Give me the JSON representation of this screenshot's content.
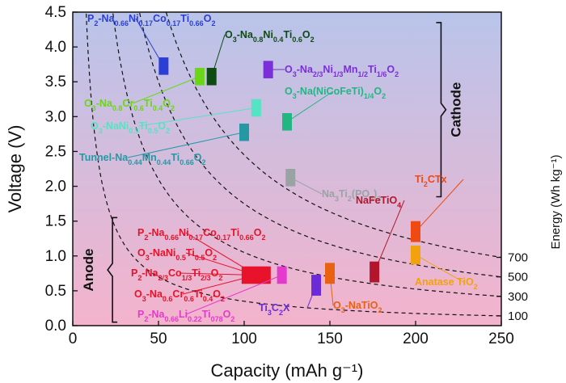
{
  "chart_data": {
    "type": "scatter",
    "title": "",
    "xlabel": "Capacity (mAh g⁻¹)",
    "ylabel": "Voltage (V)",
    "y2label": "Energy (Wh kg⁻¹)",
    "xlim": [
      0,
      250
    ],
    "ylim": [
      0,
      4.5
    ],
    "xticks": [
      0,
      50,
      100,
      150,
      200,
      250
    ],
    "yticks": [
      0.0,
      0.5,
      1.0,
      1.5,
      2.0,
      2.5,
      3.0,
      3.5,
      4.0,
      4.5
    ],
    "grid": false,
    "background": {
      "cathode_color": "#b9c4ea",
      "anode_color": "#f4b3cc"
    },
    "iso_energy_curves": [
      {
        "energy": 100,
        "label": "100"
      },
      {
        "energy": 300,
        "label": "300"
      },
      {
        "energy": 500,
        "label": "500"
      },
      {
        "energy": 700,
        "label": "700"
      }
    ],
    "groups": [
      {
        "name": "Cathode",
        "range": [
          1.85,
          4.35
        ]
      },
      {
        "name": "Anode",
        "range": [
          0.05,
          1.55
        ]
      }
    ],
    "materials": [
      {
        "label": "P2-Na0.66Ni0.17Co0.17Ti0.66O2",
        "group": "cathode",
        "capacity": 53,
        "voltage_range": [
          3.6,
          3.85
        ],
        "color": "#2b3fd6"
      },
      {
        "label": "O3-Na0.8Ni0.4Ti0.6O2",
        "group": "cathode",
        "capacity": 81,
        "voltage_range": [
          3.45,
          3.7
        ],
        "color": "#0f4a12"
      },
      {
        "label": "O3-Na0.8Cr0.6Ti0.4O2",
        "group": "cathode",
        "capacity": 74,
        "voltage_range": [
          3.45,
          3.7
        ],
        "color": "#6ad617"
      },
      {
        "label": "O3-Na2/3Ni1/3Mn1/2Ti1/6O2",
        "group": "cathode",
        "capacity": 114,
        "voltage_range": [
          3.55,
          3.8
        ],
        "color": "#7a2fd9"
      },
      {
        "label": "O3-Na(NiCoFeTi)1/4O2",
        "group": "cathode",
        "capacity": 125,
        "voltage_range": [
          2.8,
          3.05
        ],
        "color": "#22b683"
      },
      {
        "label": "O3-NaNi0.5Ti0.5O2",
        "group": "cathode",
        "capacity": 107,
        "voltage_range": [
          3.0,
          3.25
        ],
        "color": "#54e4c3"
      },
      {
        "label": "Tunnel-Na0.44Mn0.44Ti0.66O2",
        "group": "cathode",
        "capacity": 100,
        "voltage_range": [
          2.65,
          2.9
        ],
        "color": "#2499a3"
      },
      {
        "label": "Na3Ti2(PO4)3",
        "group": "cathode",
        "capacity": 127,
        "voltage_range": [
          2.0,
          2.25
        ],
        "color": "#9aa3a4"
      },
      {
        "label": "P2-Na0.66Ni0.17Co0.17Ti0.66O2",
        "group": "anode",
        "capacity": 107,
        "voltage_range": [
          0.6,
          0.85
        ],
        "color": "#e8122a"
      },
      {
        "label": "O3-NaNi0.5Ti0.5O2",
        "group": "anode",
        "capacity": 107,
        "voltage_range": [
          0.6,
          0.85
        ],
        "color": "#e8122a"
      },
      {
        "label": "P2-Na2/3Co1/3Ti2/3O2",
        "group": "anode",
        "capacity": 107,
        "voltage_range": [
          0.6,
          0.85
        ],
        "color": "#e8122a"
      },
      {
        "label": "O3-Na0.6Cr0.6Ti0.4O2",
        "group": "anode",
        "capacity": 107,
        "voltage_range": [
          0.6,
          0.85
        ],
        "color": "#e8122a"
      },
      {
        "label": "P2-Na0.66Li0.22Ti078O2",
        "group": "anode",
        "capacity": 122,
        "voltage_range": [
          0.6,
          0.85
        ],
        "color": "#e53acb"
      },
      {
        "label": "Ti3C2X",
        "group": "anode",
        "capacity": 142,
        "voltage_range": [
          0.43,
          0.73
        ],
        "color": "#6b2bd9"
      },
      {
        "label": "O3-NaTiO2",
        "group": "anode",
        "capacity": 150,
        "voltage_range": [
          0.6,
          0.9
        ],
        "color": "#e8620f"
      },
      {
        "label": "NaFeTiO4",
        "group": "anode",
        "capacity": 176,
        "voltage_range": [
          0.62,
          0.92
        ],
        "color": "#b3162c"
      },
      {
        "label": "Ti2CTx",
        "group": "anode",
        "capacity": 200,
        "voltage_range": [
          1.2,
          1.5
        ],
        "color": "#ee4a12"
      },
      {
        "label": "Anatase TiO2",
        "group": "anode",
        "capacity": 200,
        "voltage_range": [
          0.88,
          1.15
        ],
        "color": "#f2a20c"
      }
    ]
  }
}
